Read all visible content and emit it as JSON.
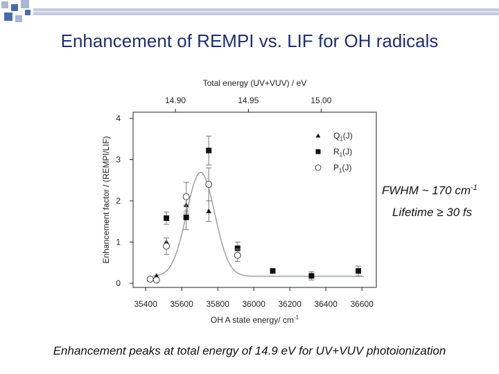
{
  "slide": {
    "title": "Enhancement of REMPI vs. LIF for OH radicals",
    "fwhm_prefix": "FWHM ~ 170 cm",
    "fwhm_sup": "-1",
    "lifetime": "Lifetime ≥ 30 fs",
    "caption": "Enhancement peaks at total energy of 14.9 eV for UV+VUV photoionization"
  },
  "colors": {
    "title": "#1f2f6e",
    "deco_blue": "#4b6aa8",
    "deco_light": "#aab6d3",
    "fit_curve": "#9aa0a8"
  },
  "chart_data": {
    "type": "scatter",
    "xlabel": "OH A state energy/ cm",
    "xlabel_sup": "-1",
    "ylabel": "Enhancement factor / (REMPI/LIF)",
    "top_axis_label": "Total energy (UV+VUV) / eV",
    "xlim": [
      35330,
      36680
    ],
    "ylim": [
      -0.1,
      4.15
    ],
    "x_ticks": [
      35400,
      35600,
      35800,
      36000,
      36200,
      36400,
      36600
    ],
    "y_ticks": [
      0,
      1,
      2,
      3,
      4
    ],
    "top_ticks": [
      {
        "label": "14.90",
        "x": 35565
      },
      {
        "label": "14.95",
        "x": 35970
      },
      {
        "label": "15.00",
        "x": 36374
      }
    ],
    "legend_position": "top-right",
    "series": [
      {
        "name": "Q1(J)",
        "name_main": "Q",
        "name_sub": "1",
        "name_suffix": "(J)",
        "marker": "triangle",
        "points": [
          {
            "x": 35460,
            "y": 0.18,
            "err": 0
          },
          {
            "x": 35515,
            "y": 1.0,
            "err": 0
          },
          {
            "x": 35625,
            "y": 1.9,
            "err": 0.2
          },
          {
            "x": 35750,
            "y": 1.75,
            "err": 0.25
          }
        ]
      },
      {
        "name": "R1(J)",
        "name_main": "R",
        "name_sub": "1",
        "name_suffix": "(J)",
        "marker": "square",
        "points": [
          {
            "x": 35515,
            "y": 1.58,
            "err": 0.15
          },
          {
            "x": 35625,
            "y": 1.6,
            "err": 0.3
          },
          {
            "x": 35750,
            "y": 3.22,
            "err": 0.35
          },
          {
            "x": 35910,
            "y": 0.85,
            "err": 0.15
          },
          {
            "x": 36105,
            "y": 0.3,
            "err": 0.05
          },
          {
            "x": 36320,
            "y": 0.18,
            "err": 0.1
          },
          {
            "x": 36580,
            "y": 0.3,
            "err": 0.12
          }
        ]
      },
      {
        "name": "P1(J)",
        "name_main": "P",
        "name_sub": "1",
        "name_suffix": "(J)",
        "marker": "circle",
        "points": [
          {
            "x": 35425,
            "y": 0.1,
            "err": 0
          },
          {
            "x": 35460,
            "y": 0.08,
            "err": 0
          },
          {
            "x": 35515,
            "y": 0.9,
            "err": 0.2
          },
          {
            "x": 35625,
            "y": 2.1,
            "err": 0.35
          },
          {
            "x": 35750,
            "y": 2.4,
            "err": 0.4
          },
          {
            "x": 35910,
            "y": 0.68,
            "err": 0.15
          }
        ]
      }
    ],
    "fit": {
      "type": "gaussian",
      "center": 35705,
      "amplitude": 2.52,
      "sigma": 78,
      "baseline": 0.17,
      "x_start": 35440,
      "x_end": 36610
    }
  }
}
